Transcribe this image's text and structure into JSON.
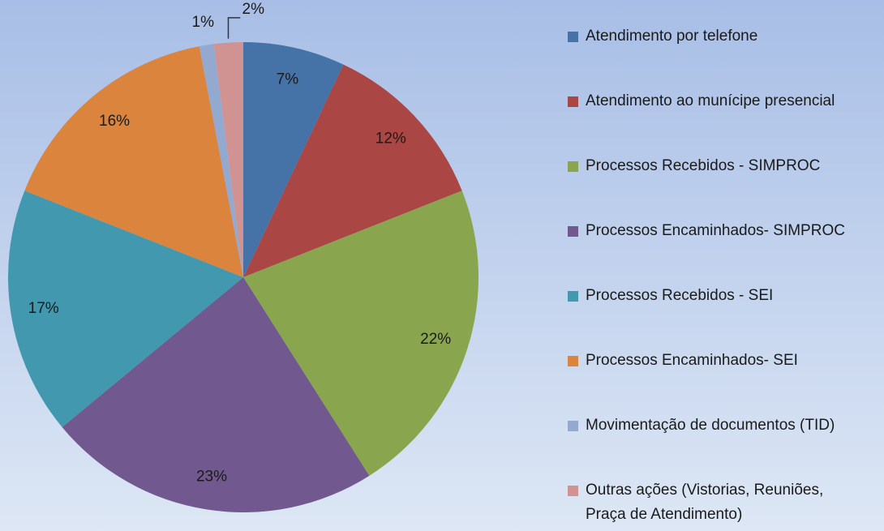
{
  "chart_data": {
    "type": "pie",
    "categories": [
      "Atendimento por telefone",
      "Atendimento ao munícipe presencial",
      "Processos Recebidos - SIMPROC",
      "Processos Encaminhados- SIMPROC",
      "Processos Recebidos - SEI",
      "Processos Encaminhados- SEI",
      "Movimentação de documentos (TID)",
      "Outras ações (Vistorias, Reuniões, Praça de Atendimento)"
    ],
    "values": [
      7,
      12,
      22,
      23,
      17,
      16,
      1,
      2
    ],
    "value_labels": [
      "7%",
      "12%",
      "22%",
      "23%",
      "17%",
      "16%",
      "1%",
      "2%"
    ],
    "colors": [
      "#4572a7",
      "#aa4643",
      "#89a54e",
      "#71588f",
      "#4198af",
      "#db843d",
      "#93a9cf",
      "#d19392"
    ],
    "legend": "right"
  }
}
